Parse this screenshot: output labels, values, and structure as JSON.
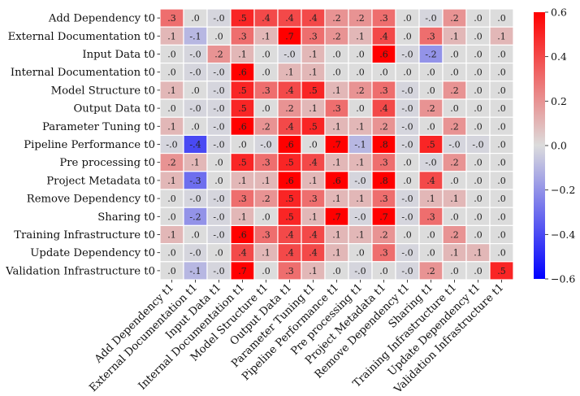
{
  "chart_data": {
    "type": "heatmap",
    "rows": [
      "Add Dependency t0",
      "External Documentation t0",
      "Input Data t0",
      "Internal Documentation t0",
      "Model Structure t0",
      "Output Data t0",
      "Parameter Tuning t0",
      "Pipeline Performance t0",
      "Pre processing t0",
      "Project Metadata t0",
      "Remove Dependency t0",
      "Sharing t0",
      "Training Infrastructure t0",
      "Update Dependency t0",
      "Validation Infrastructure t0"
    ],
    "columns": [
      "Add Dependency t1",
      "External Documentation t1",
      "Input Data t1",
      "Internal Documentation t1",
      "Model Structure t1",
      "Output Data t1",
      "Parameter Tuning t1",
      "Pipeline Performance t1",
      "Pre processing t1",
      "Project Metadata t1",
      "Remove Dependency t1",
      "Sharing t1",
      "Training Infrastructure t1",
      "Update Dependency t1",
      "Validation Infrastructure t1"
    ],
    "values": [
      [
        0.3,
        0.0,
        -0.02,
        0.5,
        0.4,
        0.4,
        0.4,
        0.2,
        0.2,
        0.3,
        0.0,
        -0.02,
        0.2,
        0.0,
        0.0
      ],
      [
        0.1,
        -0.1,
        0.0,
        0.3,
        0.1,
        0.7,
        0.3,
        0.2,
        0.1,
        0.4,
        0.0,
        0.3,
        0.1,
        0.0,
        0.1
      ],
      [
        0.0,
        -0.02,
        0.2,
        0.1,
        0.0,
        -0.02,
        0.1,
        0.0,
        0.0,
        0.6,
        -0.02,
        -0.2,
        0.0,
        0.0,
        0.0
      ],
      [
        0.0,
        -0.02,
        -0.02,
        0.6,
        0.0,
        0.1,
        0.1,
        0.0,
        0.0,
        0.0,
        0.0,
        0.0,
        0.0,
        0.0,
        0.0
      ],
      [
        0.1,
        0.0,
        -0.02,
        0.5,
        0.3,
        0.4,
        0.5,
        0.1,
        0.2,
        0.3,
        -0.02,
        0.0,
        0.2,
        0.0,
        0.0
      ],
      [
        0.0,
        -0.02,
        -0.02,
        0.5,
        0.0,
        0.2,
        0.1,
        0.3,
        0.0,
        0.4,
        -0.02,
        0.2,
        0.0,
        0.0,
        0.0
      ],
      [
        0.1,
        0.0,
        -0.02,
        0.6,
        0.2,
        0.4,
        0.5,
        0.1,
        0.1,
        0.2,
        -0.02,
        0.0,
        0.2,
        0.0,
        0.0
      ],
      [
        -0.02,
        -0.4,
        -0.02,
        0.0,
        -0.02,
        0.6,
        0.0,
        0.7,
        -0.1,
        0.8,
        -0.02,
        0.5,
        -0.02,
        -0.02,
        0.0
      ],
      [
        0.2,
        0.1,
        0.0,
        0.5,
        0.3,
        0.5,
        0.4,
        0.1,
        0.1,
        0.3,
        0.0,
        -0.02,
        0.2,
        0.0,
        0.0
      ],
      [
        0.1,
        -0.3,
        0.0,
        0.1,
        0.1,
        0.6,
        0.1,
        0.6,
        -0.02,
        0.8,
        0.0,
        0.4,
        0.0,
        0.0,
        0.0
      ],
      [
        0.0,
        -0.02,
        -0.02,
        0.3,
        0.2,
        0.5,
        0.3,
        0.1,
        0.1,
        0.3,
        -0.02,
        0.1,
        0.1,
        0.0,
        0.0
      ],
      [
        0.0,
        -0.2,
        -0.02,
        0.1,
        0.0,
        0.5,
        0.1,
        0.7,
        -0.02,
        0.7,
        -0.02,
        0.3,
        0.0,
        0.0,
        0.0
      ],
      [
        0.1,
        0.0,
        -0.02,
        0.6,
        0.3,
        0.4,
        0.4,
        0.1,
        0.1,
        0.2,
        0.0,
        0.0,
        0.2,
        0.0,
        0.0
      ],
      [
        0.0,
        -0.02,
        0.0,
        0.4,
        0.1,
        0.4,
        0.4,
        0.1,
        0.0,
        0.3,
        -0.02,
        0.0,
        0.1,
        0.1,
        0.0
      ],
      [
        0.0,
        -0.1,
        -0.02,
        0.7,
        0.0,
        0.3,
        0.1,
        0.0,
        -0.02,
        0.0,
        -0.02,
        0.2,
        0.0,
        0.0,
        0.5
      ]
    ],
    "annotations": [
      [
        ".3",
        ".0",
        "-.0",
        ".5",
        ".4",
        ".4",
        ".4",
        ".2",
        ".2",
        ".3",
        ".0",
        "-.0",
        ".2",
        ".0",
        ".0"
      ],
      [
        ".1",
        "-.1",
        ".0",
        ".3",
        ".1",
        ".7",
        ".3",
        ".2",
        ".1",
        ".4",
        ".0",
        ".3",
        ".1",
        ".0",
        ".1"
      ],
      [
        ".0",
        "-.0",
        ".2",
        ".1",
        ".0",
        "-.0",
        ".1",
        ".0",
        ".0",
        ".6",
        "-.0",
        "-.2",
        ".0",
        ".0",
        ".0"
      ],
      [
        ".0",
        "-.0",
        "-.0",
        ".6",
        ".0",
        ".1",
        ".1",
        ".0",
        ".0",
        ".0",
        ".0",
        ".0",
        ".0",
        ".0",
        ".0"
      ],
      [
        ".1",
        ".0",
        "-.0",
        ".5",
        ".3",
        ".4",
        ".5",
        ".1",
        ".2",
        ".3",
        "-.0",
        ".0",
        ".2",
        ".0",
        ".0"
      ],
      [
        ".0",
        "-.0",
        "-.0",
        ".5",
        ".0",
        ".2",
        ".1",
        ".3",
        ".0",
        ".4",
        "-.0",
        ".2",
        ".0",
        ".0",
        ".0"
      ],
      [
        ".1",
        ".0",
        "-.0",
        ".6",
        ".2",
        ".4",
        ".5",
        ".1",
        ".1",
        ".2",
        "-.0",
        ".0",
        ".2",
        ".0",
        ".0"
      ],
      [
        "-.0",
        "-.4",
        "-.0",
        ".0",
        "-.0",
        ".6",
        ".0",
        ".7",
        "-.1",
        ".8",
        "-.0",
        ".5",
        "-.0",
        "-.0",
        ".0"
      ],
      [
        ".2",
        ".1",
        ".0",
        ".5",
        ".3",
        ".5",
        ".4",
        ".1",
        ".1",
        ".3",
        ".0",
        "-.0",
        ".2",
        ".0",
        ".0"
      ],
      [
        ".1",
        "-.3",
        ".0",
        ".1",
        ".1",
        ".6",
        ".1",
        ".6",
        "-.0",
        ".8",
        ".0",
        ".4",
        ".0",
        ".0",
        ".0"
      ],
      [
        ".0",
        "-.0",
        "-.0",
        ".3",
        ".2",
        ".5",
        ".3",
        ".1",
        ".1",
        ".3",
        "-.0",
        ".1",
        ".1",
        ".0",
        ".0"
      ],
      [
        ".0",
        "-.2",
        "-.0",
        ".1",
        ".0",
        ".5",
        ".1",
        ".7",
        "-.0",
        ".7",
        "-.0",
        ".3",
        ".0",
        ".0",
        ".0"
      ],
      [
        ".1",
        ".0",
        "-.0",
        ".6",
        ".3",
        ".4",
        ".4",
        ".1",
        ".1",
        ".2",
        ".0",
        ".0",
        ".2",
        ".0",
        ".0"
      ],
      [
        ".0",
        "-.0",
        ".0",
        ".4",
        ".1",
        ".4",
        ".4",
        ".1",
        ".0",
        ".3",
        "-.0",
        ".0",
        ".1",
        ".1",
        ".0"
      ],
      [
        ".0",
        "-.1",
        "-.0",
        ".7",
        ".0",
        ".3",
        ".1",
        ".0",
        "-.0",
        ".0",
        "-.0",
        ".2",
        ".0",
        ".0",
        ".5"
      ]
    ],
    "colorbar": {
      "range": [
        -0.6,
        0.6
      ],
      "ticks": [
        -0.6,
        -0.4,
        -0.2,
        0.0,
        0.2,
        0.4,
        0.6
      ],
      "tick_labels": [
        "−0.6",
        "−0.4",
        "−0.2",
        "0.0",
        "0.2",
        "0.4",
        "0.6"
      ],
      "colors": {
        "low": "#0000ff",
        "mid": "#dcdcdc",
        "high": "#ff0000"
      }
    },
    "cell_border_color": "#ffffff"
  }
}
